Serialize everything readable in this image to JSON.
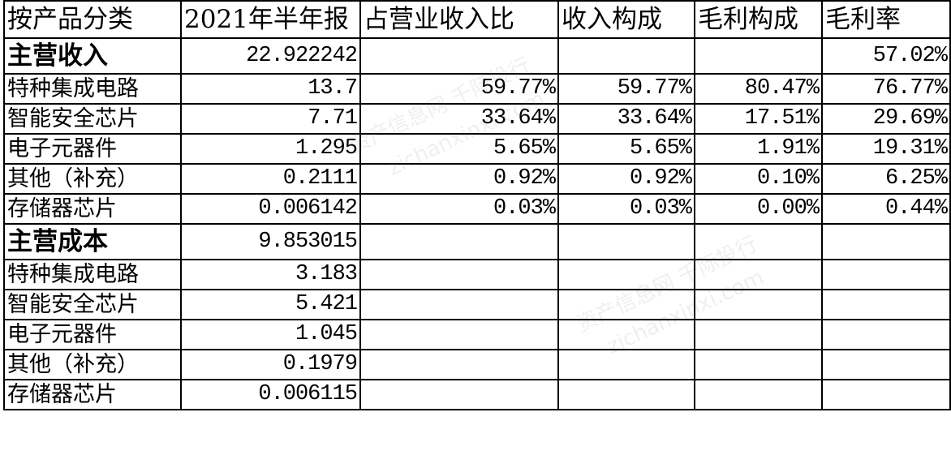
{
  "table": {
    "headers": [
      "按产品分类",
      "2021年半年报",
      "占营业收入比",
      "收入构成",
      "毛利构成",
      "毛利率"
    ],
    "rows": [
      {
        "cells": [
          "主营收入",
          "22.922242",
          "",
          "",
          "",
          "57.02%"
        ],
        "section": true
      },
      {
        "cells": [
          "特种集成电路",
          "13.7",
          "59.77%",
          "59.77%",
          "80.47%",
          "76.77%"
        ]
      },
      {
        "cells": [
          "智能安全芯片",
          "7.71",
          "33.64%",
          "33.64%",
          "17.51%",
          "29.69%"
        ]
      },
      {
        "cells": [
          "电子元器件",
          "1.295",
          "5.65%",
          "5.65%",
          "1.91%",
          "19.31%"
        ]
      },
      {
        "cells": [
          "其他（补充）",
          "0.2111",
          "0.92%",
          "0.92%",
          "0.10%",
          "6.25%"
        ]
      },
      {
        "cells": [
          "存储器芯片",
          "0.006142",
          "0.03%",
          "0.03%",
          "0.00%",
          "0.44%"
        ]
      },
      {
        "cells": [
          "主营成本",
          "9.853015",
          "",
          "",
          "",
          ""
        ],
        "section": true
      },
      {
        "cells": [
          "特种集成电路",
          "3.183",
          "",
          "",
          "",
          ""
        ]
      },
      {
        "cells": [
          "智能安全芯片",
          "5.421",
          "",
          "",
          "",
          ""
        ]
      },
      {
        "cells": [
          "电子元器件",
          "1.045",
          "",
          "",
          "",
          ""
        ]
      },
      {
        "cells": [
          "其他（补充）",
          "0.1979",
          "",
          "",
          "",
          ""
        ]
      },
      {
        "cells": [
          "存储器芯片",
          "0.006115",
          "",
          "",
          "",
          ""
        ]
      }
    ]
  },
  "watermark": [
    "资产信息网 千际投行",
    "zichanxinxi.com"
  ]
}
